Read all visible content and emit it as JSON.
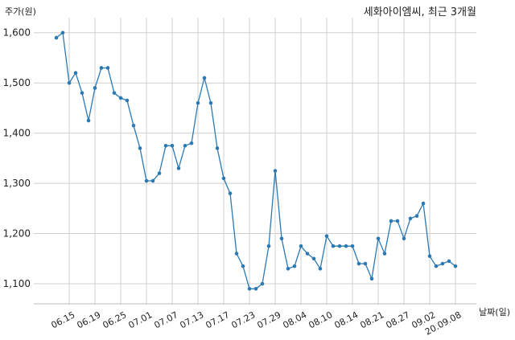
{
  "chart_data": {
    "type": "line",
    "title": "세화아이엠씨, 최근 3개월",
    "ylabel": "주가(원)",
    "xlabel": "날짜(일)",
    "ylim": [
      1060,
      1630
    ],
    "yticks": [
      1100,
      1200,
      1300,
      1400,
      1500,
      1600
    ],
    "ytick_labels": [
      "1,100",
      "1,200",
      "1,300",
      "1,400",
      "1,500",
      "1,600"
    ],
    "grid": true,
    "xticks": [
      {
        "label": "06.15",
        "index": 2
      },
      {
        "label": "06.19",
        "index": 6
      },
      {
        "label": "06.25",
        "index": 10
      },
      {
        "label": "07.01",
        "index": 14
      },
      {
        "label": "07.07",
        "index": 18
      },
      {
        "label": "07.13",
        "index": 22
      },
      {
        "label": "07.17",
        "index": 26
      },
      {
        "label": "07.23",
        "index": 30
      },
      {
        "label": "07.29",
        "index": 34
      },
      {
        "label": "08.04",
        "index": 38
      },
      {
        "label": "08.10",
        "index": 42
      },
      {
        "label": "08.14",
        "index": 46
      },
      {
        "label": "08.21",
        "index": 50
      },
      {
        "label": "08.27",
        "index": 54
      },
      {
        "label": "09.02",
        "index": 58
      },
      {
        "label": "20.09.08",
        "index": 62
      }
    ],
    "series": [
      {
        "color": "#2a7ab5",
        "values": [
          1590,
          1600,
          1500,
          1520,
          1480,
          1425,
          1490,
          1530,
          1530,
          1480,
          1470,
          1465,
          1415,
          1370,
          1305,
          1305,
          1320,
          1375,
          1375,
          1330,
          1375,
          1380,
          1460,
          1510,
          1460,
          1370,
          1310,
          1280,
          1160,
          1135,
          1090,
          1090,
          1100,
          1175,
          1325,
          1190,
          1130,
          1135,
          1175,
          1160,
          1150,
          1130,
          1195,
          1175,
          1175,
          1175,
          1175,
          1140,
          1140,
          1110,
          1190,
          1160,
          1225,
          1225,
          1190,
          1230,
          1235,
          1260,
          1155,
          1135,
          1140,
          1145,
          1135
        ]
      }
    ]
  }
}
